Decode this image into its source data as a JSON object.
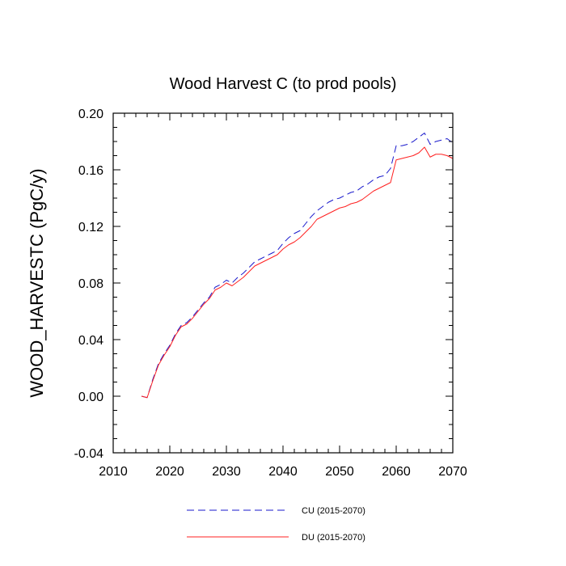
{
  "chart_data": {
    "type": "line",
    "title": "Wood Harvest C (to prod pools)",
    "xlabel": "",
    "ylabel": "WOOD_HARVESTC  (PgC/y)",
    "xlim": [
      2010,
      2070
    ],
    "ylim": [
      -0.04,
      0.2
    ],
    "x_ticks": [
      2010,
      2020,
      2030,
      2040,
      2050,
      2060,
      2070
    ],
    "x_tick_labels": [
      "2010",
      "2020",
      "2030",
      "2040",
      "2050",
      "2060",
      "2070"
    ],
    "y_ticks": [
      -0.04,
      0.0,
      0.04,
      0.08,
      0.12,
      0.16,
      0.2
    ],
    "y_tick_labels": [
      "-0.04",
      "0.00",
      "0.04",
      "0.08",
      "0.12",
      "0.16",
      "0.20"
    ],
    "legend_position": "bottom",
    "x": [
      2015,
      2016,
      2017,
      2018,
      2019,
      2020,
      2021,
      2022,
      2023,
      2024,
      2025,
      2026,
      2027,
      2028,
      2029,
      2030,
      2031,
      2032,
      2033,
      2034,
      2035,
      2036,
      2037,
      2038,
      2039,
      2040,
      2041,
      2042,
      2043,
      2044,
      2045,
      2046,
      2047,
      2048,
      2049,
      2050,
      2051,
      2052,
      2053,
      2054,
      2055,
      2056,
      2057,
      2058,
      2059,
      2060,
      2061,
      2062,
      2063,
      2064,
      2065,
      2066,
      2067,
      2068,
      2069,
      2070
    ],
    "series": [
      {
        "name": "CU (2015-2070)",
        "color": "#1a1acc",
        "style": "dashed",
        "values": [
          0.0,
          -0.001,
          0.012,
          0.023,
          0.03,
          0.036,
          0.044,
          0.05,
          0.052,
          0.056,
          0.061,
          0.066,
          0.07,
          0.077,
          0.079,
          0.082,
          0.08,
          0.084,
          0.087,
          0.091,
          0.095,
          0.097,
          0.099,
          0.101,
          0.103,
          0.108,
          0.112,
          0.115,
          0.117,
          0.122,
          0.127,
          0.131,
          0.134,
          0.137,
          0.139,
          0.14,
          0.142,
          0.144,
          0.145,
          0.148,
          0.15,
          0.153,
          0.155,
          0.156,
          0.161,
          0.177,
          0.177,
          0.178,
          0.18,
          0.183,
          0.186,
          0.178,
          0.18,
          0.181,
          0.182,
          0.179
        ]
      },
      {
        "name": "DU (2015-2070)",
        "color": "#ff2020",
        "style": "solid",
        "values": [
          0.0,
          -0.001,
          0.011,
          0.022,
          0.029,
          0.035,
          0.043,
          0.049,
          0.051,
          0.055,
          0.06,
          0.065,
          0.069,
          0.075,
          0.077,
          0.08,
          0.078,
          0.081,
          0.084,
          0.088,
          0.092,
          0.094,
          0.096,
          0.098,
          0.1,
          0.104,
          0.107,
          0.109,
          0.112,
          0.116,
          0.12,
          0.125,
          0.127,
          0.129,
          0.131,
          0.133,
          0.134,
          0.136,
          0.137,
          0.139,
          0.142,
          0.145,
          0.147,
          0.149,
          0.151,
          0.167,
          0.168,
          0.169,
          0.17,
          0.172,
          0.176,
          0.169,
          0.171,
          0.171,
          0.17,
          0.168
        ]
      }
    ]
  }
}
